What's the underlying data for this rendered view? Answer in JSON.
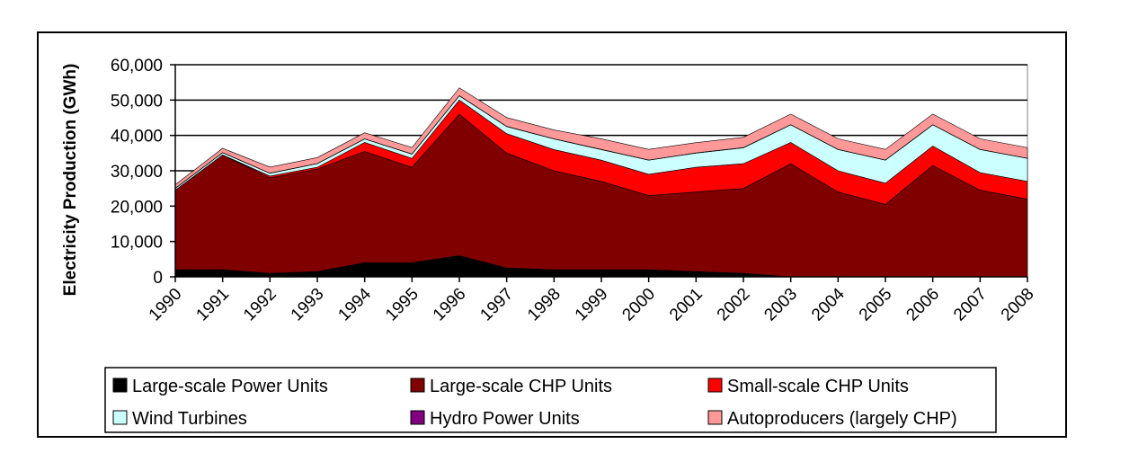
{
  "chart_data": {
    "type": "area",
    "stacked": true,
    "title": "",
    "xlabel": "",
    "ylabel": "Electricity Production (GWh)",
    "ylim": [
      0,
      60000
    ],
    "yticks": [
      "0",
      "10,000",
      "20,000",
      "30,000",
      "40,000",
      "50,000",
      "60,000"
    ],
    "categories": [
      "1990",
      "1991",
      "1992",
      "1993",
      "1994",
      "1995",
      "1996",
      "1997",
      "1998",
      "1999",
      "2000",
      "2001",
      "2002",
      "2003",
      "2004",
      "2005",
      "2006",
      "2007",
      "2008"
    ],
    "grid": true,
    "legend_position": "bottom",
    "series": [
      {
        "name": "Large-scale Power Units",
        "color": "#000000",
        "values": [
          2000,
          2000,
          1000,
          1500,
          4000,
          4000,
          6000,
          2500,
          2000,
          2000,
          2000,
          1500,
          1000,
          0,
          0,
          0,
          0,
          0,
          0
        ]
      },
      {
        "name": "Large-scale CHP Units",
        "color": "#800000",
        "values": [
          22500,
          32500,
          27000,
          29000,
          31500,
          27000,
          40000,
          32500,
          28000,
          25000,
          21000,
          22500,
          24000,
          32000,
          24000,
          20500,
          31500,
          24500,
          22000
        ]
      },
      {
        "name": "Small-scale CHP Units",
        "color": "#ff0000",
        "values": [
          0,
          0,
          500,
          500,
          2500,
          2500,
          4000,
          5500,
          6000,
          6000,
          6000,
          7000,
          7000,
          6000,
          6000,
          6000,
          5500,
          5000,
          5000
        ]
      },
      {
        "name": "Wind Turbines",
        "color": "#ccffff",
        "values": [
          500,
          600,
          800,
          1000,
          1000,
          1200,
          1200,
          2000,
          3000,
          3000,
          4000,
          4000,
          4500,
          5000,
          6000,
          6500,
          6000,
          6500,
          6500
        ]
      },
      {
        "name": "Hydro Power Units",
        "color": "#800080",
        "values": [
          50,
          50,
          50,
          50,
          50,
          50,
          50,
          50,
          50,
          50,
          50,
          50,
          50,
          50,
          50,
          50,
          50,
          50,
          50
        ]
      },
      {
        "name": "Autoproducers (largely CHP)",
        "color": "#ff9999",
        "values": [
          1000,
          1200,
          1700,
          1700,
          1700,
          1800,
          2200,
          2500,
          2500,
          3000,
          3000,
          2900,
          2900,
          3000,
          3000,
          3000,
          3000,
          3000,
          3000
        ]
      }
    ]
  },
  "colors": {
    "plot_background": "#ffffff",
    "gridline": "#000000",
    "frame": "#000000"
  }
}
